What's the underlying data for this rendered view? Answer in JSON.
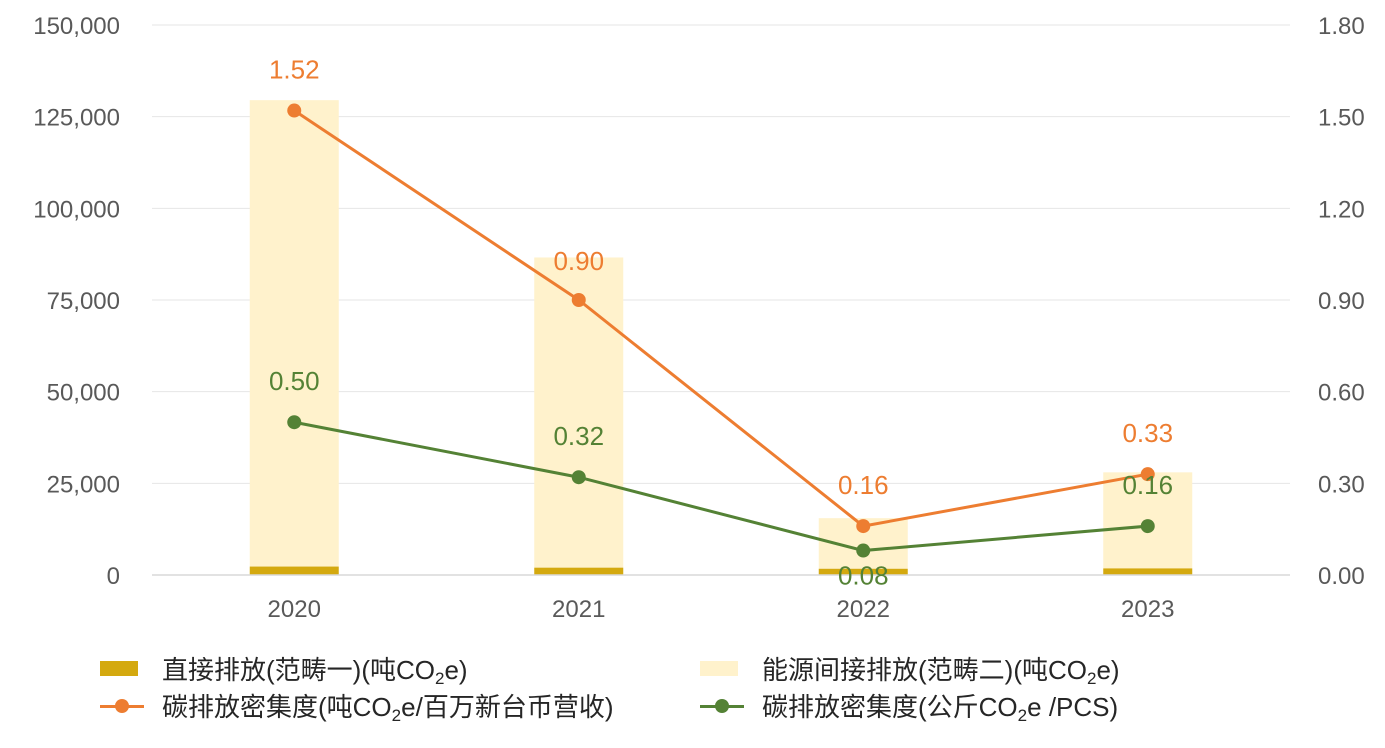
{
  "chart_data": {
    "type": "bar",
    "categories": [
      "2020",
      "2021",
      "2022",
      "2023"
    ],
    "left_axis": {
      "min": 0,
      "max": 150000,
      "ticks": [
        "0",
        "25,000",
        "50,000",
        "75,000",
        "100,000",
        "125,000",
        "150,000"
      ]
    },
    "right_axis": {
      "min": 0,
      "max": 1.8,
      "ticks": [
        "0.00",
        "0.30",
        "0.60",
        "0.90",
        "1.20",
        "1.50",
        "1.80"
      ]
    },
    "grid": true,
    "legend_position": "bottom",
    "series": [
      {
        "name": "直接排放(范畴一)(吨CO2e)",
        "kind": "bar",
        "axis": "left",
        "color": "#D4A90F",
        "values": [
          2300,
          2000,
          1700,
          1800
        ]
      },
      {
        "name": "能源间接排放(范畴二)(吨CO2e)",
        "kind": "bar",
        "axis": "left",
        "color": "#FFF2CC",
        "values": [
          127200,
          84600,
          13800,
          26200
        ]
      },
      {
        "name": "碳排放密集度(吨CO2e/百万新台币营收)",
        "kind": "line",
        "axis": "right",
        "color": "#ED7D31",
        "values": [
          1.52,
          0.9,
          0.16,
          0.33
        ],
        "labels": [
          "1.52",
          "0.90",
          "0.16",
          "0.33"
        ]
      },
      {
        "name": "碳排放密集度(公斤CO2e /PCS)",
        "kind": "line",
        "axis": "right",
        "color": "#548235",
        "values": [
          0.5,
          0.32,
          0.08,
          0.16
        ],
        "labels": [
          "0.50",
          "0.32",
          "0.08",
          "0.16"
        ]
      }
    ]
  },
  "legend": [
    {
      "pre": "直接排放(范畴一)(吨CO",
      "sub": "2",
      "post": "e)",
      "swatch": "bar",
      "color": "#D4A90F"
    },
    {
      "pre": "能源间接排放(范畴二)(吨CO",
      "sub": "2",
      "post": "e)",
      "swatch": "bar",
      "color": "#FFF2CC"
    },
    {
      "pre": "碳排放密集度(吨CO",
      "sub": "2",
      "post": "e/百万新台币营收)",
      "swatch": "line",
      "color": "#ED7D31"
    },
    {
      "pre": "碳排放密集度(公斤CO",
      "sub": "2",
      "post": "e /PCS)",
      "swatch": "line",
      "color": "#548235"
    }
  ]
}
